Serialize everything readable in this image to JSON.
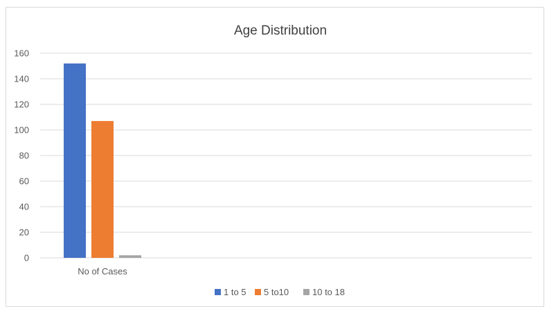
{
  "chart_data": {
    "type": "bar",
    "title": "Age Distribution",
    "categories": [
      "No of Cases"
    ],
    "series": [
      {
        "name": "1 to 5",
        "values": [
          152
        ],
        "color": "#4472C4"
      },
      {
        "name": "5 to10",
        "values": [
          107
        ],
        "color": "#ED7D31"
      },
      {
        "name": "10 to 18",
        "values": [
          2
        ],
        "color": "#A5A5A5"
      }
    ],
    "ylim": [
      0,
      160
    ],
    "yticks": [
      "0",
      "20",
      "40",
      "60",
      "80",
      "100",
      "120",
      "140",
      "160"
    ],
    "grid": true,
    "legend_position": "bottom"
  }
}
